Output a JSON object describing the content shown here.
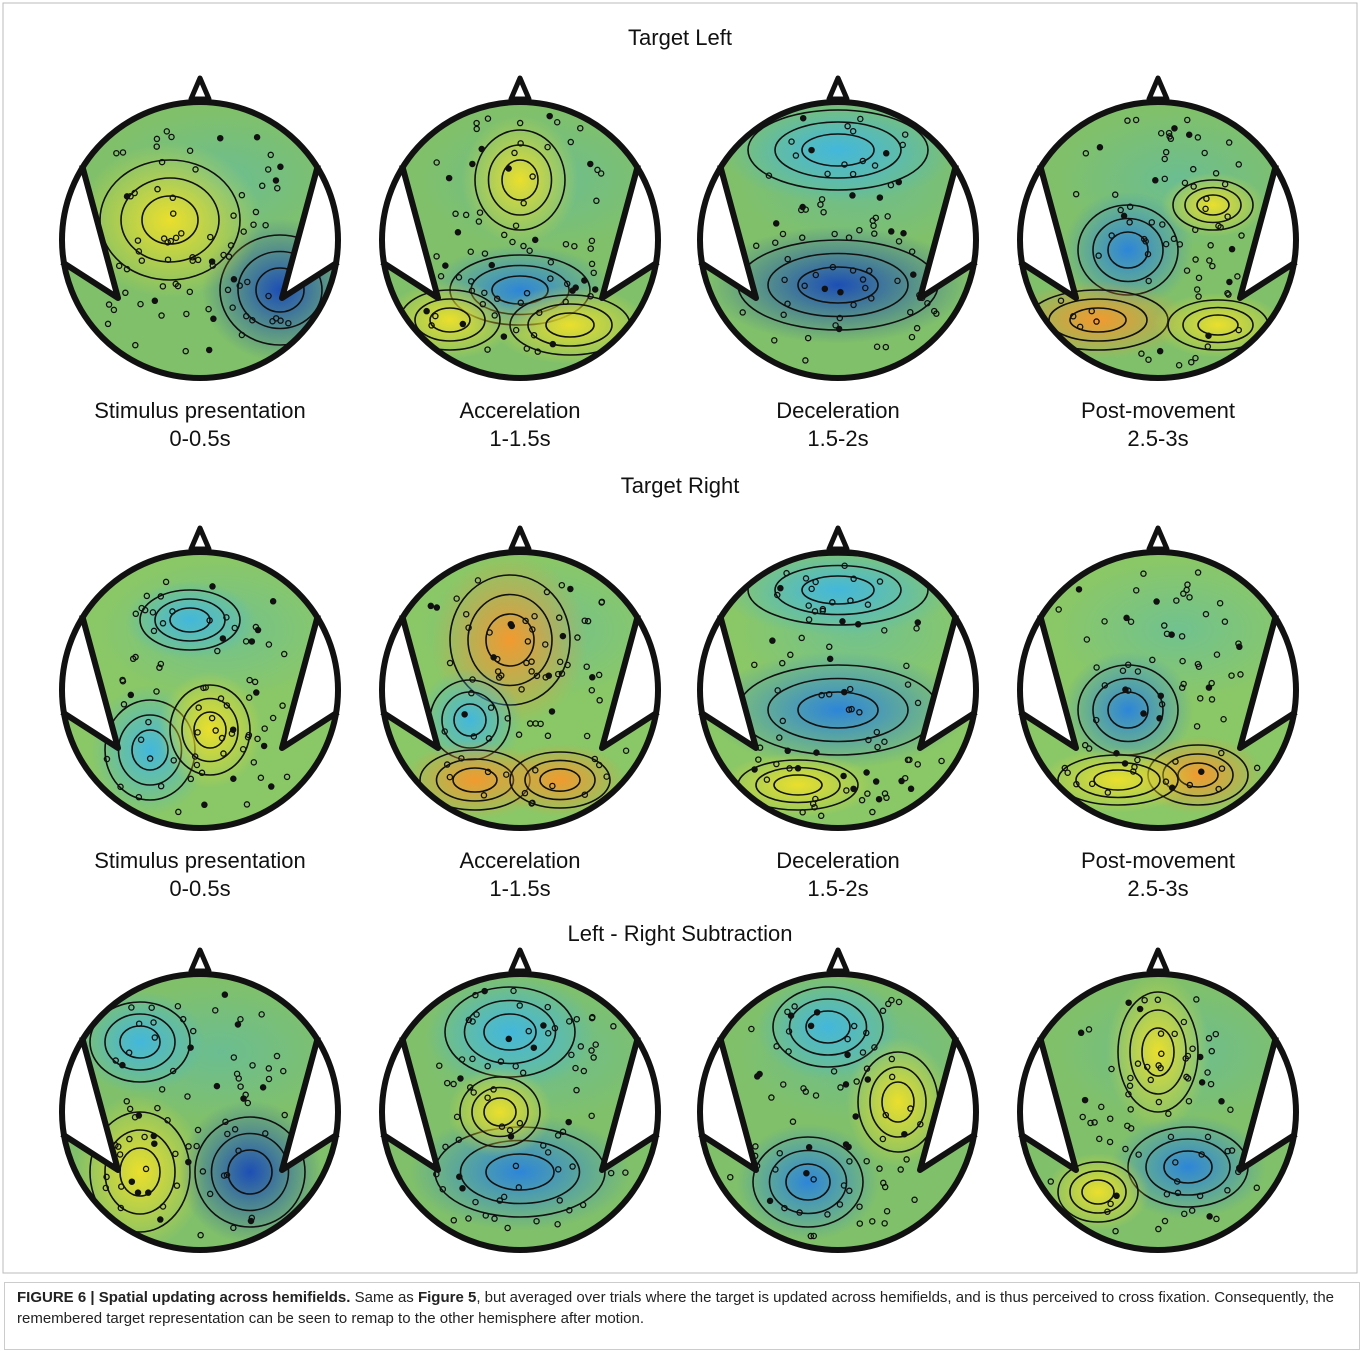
{
  "rows": [
    {
      "title": "Target Left",
      "panels": [
        {
          "label": "Stimulus presentation",
          "time": "0-0.5s"
        },
        {
          "label": "Accerelation",
          "time": "1-1.5s"
        },
        {
          "label": "Deceleration",
          "time": "1.5-2s"
        },
        {
          "label": "Post-movement",
          "time": "2.5-3s"
        }
      ]
    },
    {
      "title": "Target Right",
      "panels": [
        {
          "label": "Stimulus presentation",
          "time": "0-0.5s"
        },
        {
          "label": "Accerelation",
          "time": "1-1.5s"
        },
        {
          "label": "Deceleration",
          "time": "1.5-2s"
        },
        {
          "label": "Post-movement",
          "time": "2.5-3s"
        }
      ]
    },
    {
      "title": "Left - Right Subtraction"
    }
  ],
  "caption": {
    "label": "FIGURE 6 | Spatial updating across hemifields.",
    "text_1": " Same as ",
    "ref": "Figure 5",
    "text_2": ", but averaged over trials where the target is updated across hemifields, and is thus perceived to cross fixation. Consequently, the remembered target representation can be seen to remap to the other hemisphere after motion."
  }
}
